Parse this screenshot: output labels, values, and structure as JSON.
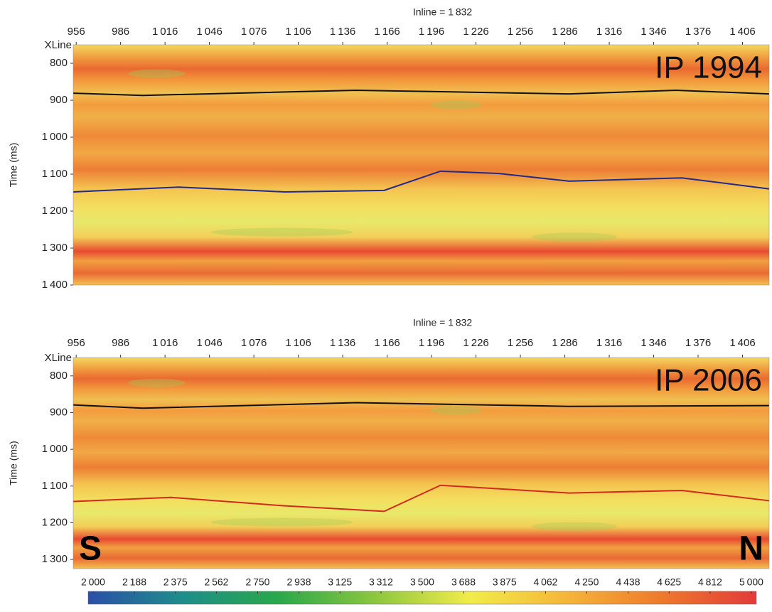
{
  "chart_data": [
    {
      "type": "seismic",
      "title": "Inline = 1 832",
      "label": "IP 1994",
      "xlabel": "XLine",
      "ylabel": "Time (ms)",
      "xlim": [
        954,
        1424
      ],
      "ylim": [
        750,
        1400
      ],
      "xticks": [
        956,
        986,
        {
          "value": 1016,
          "label": "1 016"
        },
        {
          "value": 1046,
          "label": "1 046"
        },
        {
          "value": 1076,
          "label": "1 076"
        },
        {
          "value": 1106,
          "label": "1 106"
        },
        {
          "value": 1136,
          "label": "1 136"
        },
        {
          "value": 1166,
          "label": "1 166"
        },
        {
          "value": 1196,
          "label": "1 196"
        },
        {
          "value": 1226,
          "label": "1 226"
        },
        {
          "value": 1256,
          "label": "1 256"
        },
        {
          "value": 1286,
          "label": "1 286"
        },
        {
          "value": 1316,
          "label": "1 316"
        },
        {
          "value": 1346,
          "label": "1 346"
        },
        {
          "value": 1376,
          "label": "1 376"
        },
        {
          "value": 1406,
          "label": "1 406"
        }
      ],
      "yticks": [
        800,
        900,
        {
          "value": 1000,
          "label": "1 000"
        },
        {
          "value": 1100,
          "label": "1 100"
        },
        {
          "value": 1200,
          "label": "1 200"
        },
        {
          "value": 1300,
          "label": "1 300"
        },
        {
          "value": 1400,
          "label": "1 400"
        }
      ],
      "horizons": [
        {
          "color": "#111111",
          "x": [
            954,
            1001,
            1145,
            1289,
            1361,
            1424
          ],
          "values": [
            881,
            887,
            873,
            883,
            873,
            883
          ]
        },
        {
          "color": "#1f2a8c",
          "x": [
            954,
            1025,
            1097,
            1164,
            1202,
            1241,
            1289,
            1365,
            1424
          ],
          "values": [
            1148,
            1135,
            1148,
            1144,
            1092,
            1098,
            1119,
            1110,
            1140
          ]
        }
      ]
    },
    {
      "type": "seismic",
      "title": "Inline = 1 832",
      "label": "IP 2006",
      "xlabel": "XLine",
      "ylabel": "Time (ms)",
      "left_marker": "S",
      "right_marker": "N",
      "xlim": [
        954,
        1424
      ],
      "ylim": [
        750,
        1325
      ],
      "xticks": [
        956,
        986,
        {
          "value": 1016,
          "label": "1 016"
        },
        {
          "value": 1046,
          "label": "1 046"
        },
        {
          "value": 1076,
          "label": "1 076"
        },
        {
          "value": 1106,
          "label": "1 106"
        },
        {
          "value": 1136,
          "label": "1 136"
        },
        {
          "value": 1166,
          "label": "1 166"
        },
        {
          "value": 1196,
          "label": "1 196"
        },
        {
          "value": 1226,
          "label": "1 226"
        },
        {
          "value": 1256,
          "label": "1 256"
        },
        {
          "value": 1286,
          "label": "1 286"
        },
        {
          "value": 1316,
          "label": "1 316"
        },
        {
          "value": 1346,
          "label": "1 346"
        },
        {
          "value": 1376,
          "label": "1 376"
        },
        {
          "value": 1406,
          "label": "1 406"
        }
      ],
      "yticks": [
        800,
        900,
        {
          "value": 1000,
          "label": "1 000"
        },
        {
          "value": 1100,
          "label": "1 100"
        },
        {
          "value": 1200,
          "label": "1 200"
        },
        {
          "value": 1300,
          "label": "1 300"
        }
      ],
      "horizons": [
        {
          "color": "#111111",
          "x": [
            954,
            1001,
            1145,
            1289,
            1424
          ],
          "values": [
            879,
            888,
            873,
            883,
            881
          ]
        },
        {
          "color": "#d42a1e",
          "x": [
            954,
            1020,
            1097,
            1164,
            1202,
            1289,
            1365,
            1424
          ],
          "values": [
            1142,
            1131,
            1154,
            1169,
            1098,
            1119,
            1112,
            1140
          ]
        }
      ]
    },
    {
      "type": "colorbar",
      "xlim": [
        2000,
        5000
      ],
      "xticks": [
        {
          "value": 2000,
          "label": "2 000"
        },
        {
          "value": 2188,
          "label": "2 188"
        },
        {
          "value": 2375,
          "label": "2 375"
        },
        {
          "value": 2562,
          "label": "2 562"
        },
        {
          "value": 2750,
          "label": "2 750"
        },
        {
          "value": 2938,
          "label": "2 938"
        },
        {
          "value": 3125,
          "label": "3 125"
        },
        {
          "value": 3312,
          "label": "3 312"
        },
        {
          "value": 3500,
          "label": "3 500"
        },
        {
          "value": 3688,
          "label": "3 688"
        },
        {
          "value": 3875,
          "label": "3 875"
        },
        {
          "value": 4062,
          "label": "4 062"
        },
        {
          "value": 4250,
          "label": "4 250"
        },
        {
          "value": 4438,
          "label": "4 438"
        },
        {
          "value": 4625,
          "label": "4 625"
        },
        {
          "value": 4812,
          "label": "4 812"
        },
        {
          "value": 5000,
          "label": "5 000"
        }
      ],
      "colors": [
        "#2b4fa8",
        "#1e8e8a",
        "#2aa84a",
        "#8cc63f",
        "#f2ec4a",
        "#f6b63a",
        "#ee7a2c",
        "#e23a3a"
      ]
    }
  ]
}
